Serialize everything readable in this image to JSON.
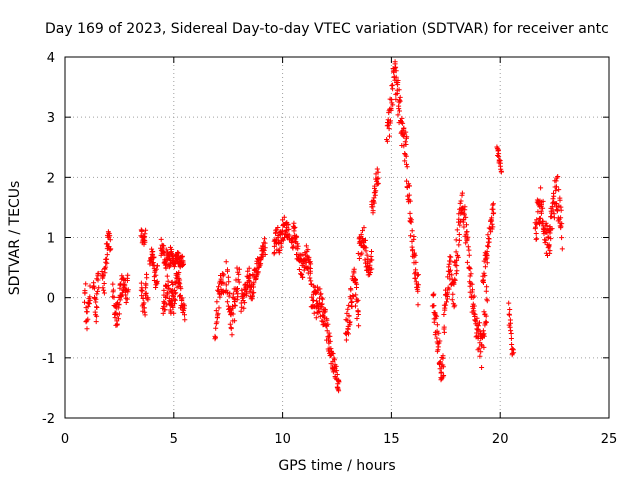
{
  "chart_data": {
    "type": "scatter",
    "title": "Day 169 of 2023, Sidereal Day-to-day VTEC variation (SDTVAR) for receiver antc",
    "xlabel": "GPS time / hours",
    "ylabel": "SDTVAR / TECUs",
    "xlim": [
      0,
      25
    ],
    "ylim": [
      -2,
      4
    ],
    "xticks": [
      0,
      5,
      10,
      15,
      20,
      25
    ],
    "yticks": [
      -2,
      -1,
      0,
      1,
      2,
      3,
      4
    ],
    "grid": true,
    "marker": "+",
    "color": "#ff0000",
    "series": [
      {
        "name": "SDTVAR",
        "segments": [
          {
            "x0": 0.9,
            "x1": 1.15,
            "y": [
              0.05,
              0.2,
              -0.3,
              -0.45,
              0.1,
              -0.2,
              -0.05
            ],
            "spread": 0.25
          },
          {
            "x0": 1.3,
            "x1": 1.55,
            "y": [
              0.3,
              -0.1,
              -0.25,
              0.25,
              0.35
            ],
            "spread": 0.2
          },
          {
            "x0": 1.7,
            "x1": 2.1,
            "y": [
              0.3,
              0.2,
              0.7,
              1.0,
              0.9
            ],
            "spread": 0.15
          },
          {
            "x0": 2.2,
            "x1": 2.5,
            "y": [
              0.2,
              -0.2,
              -0.3,
              0.0
            ],
            "spread": 0.25
          },
          {
            "x0": 2.5,
            "x1": 2.9,
            "y": [
              0.0,
              0.2,
              0.3,
              0.1,
              0.2
            ],
            "spread": 0.2
          },
          {
            "x0": 3.5,
            "x1": 3.7,
            "y": [
              1.1,
              0.95,
              1.05
            ],
            "spread": 0.1
          },
          {
            "x0": 3.5,
            "x1": 3.8,
            "y": [
              0.1,
              -0.1,
              -0.25,
              0.3,
              0.05
            ],
            "spread": 0.2
          },
          {
            "x0": 3.9,
            "x1": 4.25,
            "y": [
              0.55,
              0.8,
              0.3,
              0.4
            ],
            "spread": 0.15
          },
          {
            "x0": 4.4,
            "x1": 4.85,
            "y": [
              0.85,
              0.75,
              0.6,
              0.7,
              0.5
            ],
            "spread": 0.15
          },
          {
            "x0": 4.5,
            "x1": 4.95,
            "y": [
              -0.1,
              0.0,
              0.2,
              -0.15,
              0.05
            ],
            "spread": 0.2
          },
          {
            "x0": 4.85,
            "x1": 5.45,
            "y": [
              0.8,
              0.6,
              0.7,
              0.6,
              0.65
            ],
            "spread": 0.1
          },
          {
            "x0": 4.9,
            "x1": 5.5,
            "y": [
              0.1,
              -0.1,
              0.2,
              0.35,
              0.05,
              -0.15,
              -0.3
            ],
            "spread": 0.2
          },
          {
            "x0": 6.9,
            "x1": 7.3,
            "y": [
              -0.6,
              -0.2,
              0.1,
              0.3,
              0.2
            ],
            "spread": 0.25
          },
          {
            "x0": 7.4,
            "x1": 8.0,
            "y": [
              0.3,
              0.1,
              -0.2,
              -0.35,
              0.0,
              0.2,
              0.4
            ],
            "spread": 0.3
          },
          {
            "x0": 8.1,
            "x1": 8.7,
            "y": [
              -0.1,
              0.0,
              0.2,
              0.3,
              0.1,
              0.3
            ],
            "spread": 0.2
          },
          {
            "x0": 8.7,
            "x1": 9.2,
            "y": [
              0.3,
              0.5,
              0.6,
              0.8,
              0.85
            ],
            "spread": 0.15
          },
          {
            "x0": 9.6,
            "x1": 10.3,
            "y": [
              0.8,
              1.0,
              0.9,
              1.1,
              1.2,
              1.05
            ],
            "spread": 0.2
          },
          {
            "x0": 10.4,
            "x1": 11.3,
            "y": [
              0.9,
              1.1,
              0.8,
              0.6,
              0.5,
              0.7,
              0.6,
              0.4
            ],
            "spread": 0.2
          },
          {
            "x0": 11.3,
            "x1": 12.2,
            "y": [
              0.1,
              0.0,
              -0.1,
              0.0,
              -0.2,
              -0.4,
              -0.6,
              -0.8
            ],
            "spread": 0.25
          },
          {
            "x0": 12.2,
            "x1": 12.6,
            "y": [
              -0.9,
              -1.1,
              -1.3,
              -1.5
            ],
            "spread": 0.15
          },
          {
            "x0": 12.9,
            "x1": 13.5,
            "y": [
              -0.6,
              -0.4,
              -0.2,
              0.1,
              0.3,
              0.0,
              -0.3
            ],
            "spread": 0.25
          },
          {
            "x0": 13.5,
            "x1": 14.1,
            "y": [
              0.8,
              0.9,
              1.0,
              0.6,
              0.4,
              0.6
            ],
            "spread": 0.2
          },
          {
            "x0": 14.1,
            "x1": 14.4,
            "y": [
              1.4,
              1.6,
              2.0,
              2.0
            ],
            "spread": 0.15
          },
          {
            "x0": 14.8,
            "x1": 15.35,
            "y": [
              2.6,
              3.0,
              3.4,
              3.8,
              3.5,
              3.2
            ],
            "spread": 0.3
          },
          {
            "x0": 15.35,
            "x1": 15.7,
            "y": [
              3.2,
              3.0,
              2.7,
              2.5,
              2.6
            ],
            "spread": 0.3
          },
          {
            "x0": 15.7,
            "x1": 16.25,
            "y": [
              2.0,
              1.8,
              1.3,
              0.9,
              0.6,
              0.3,
              0.1
            ],
            "spread": 0.25
          },
          {
            "x0": 16.9,
            "x1": 17.4,
            "y": [
              -0.1,
              -0.3,
              -0.6,
              -0.9,
              -1.2,
              -1.1
            ],
            "spread": 0.25
          },
          {
            "x0": 17.4,
            "x1": 17.9,
            "y": [
              -0.5,
              0.0,
              0.3,
              0.5,
              0.2,
              0.0
            ],
            "spread": 0.25
          },
          {
            "x0": 17.9,
            "x1": 18.6,
            "y": [
              0.4,
              0.8,
              1.2,
              1.7,
              1.3,
              0.9,
              0.5
            ],
            "spread": 0.3
          },
          {
            "x0": 18.6,
            "x1": 19.4,
            "y": [
              0.3,
              -0.1,
              -0.4,
              -0.6,
              -0.9,
              -0.5,
              0.0
            ],
            "spread": 0.3
          },
          {
            "x0": 19.2,
            "x1": 19.7,
            "y": [
              0.3,
              0.6,
              0.9,
              1.2,
              1.4
            ],
            "spread": 0.2
          },
          {
            "x0": 19.85,
            "x1": 20.05,
            "y": [
              2.5,
              2.3,
              2.1
            ],
            "spread": 0.1
          },
          {
            "x0": 20.4,
            "x1": 20.6,
            "y": [
              -0.2,
              -0.5,
              -0.8,
              -0.9
            ],
            "spread": 0.15
          },
          {
            "x0": 21.6,
            "x1": 22.85,
            "y": [
              1.1,
              1.4,
              1.6,
              1.3,
              1.0,
              0.9,
              1.2,
              1.6,
              1.8,
              1.4,
              1.1
            ],
            "spread": 0.3
          }
        ]
      }
    ]
  }
}
